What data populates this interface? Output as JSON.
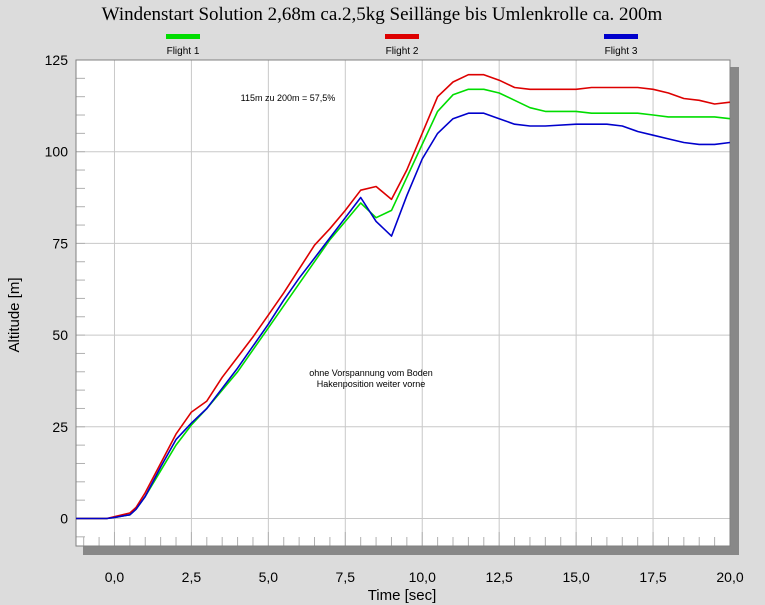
{
  "chart_data": {
    "type": "line",
    "title": "Windenstart Solution 2,68m ca.2,5kg Seillänge bis Umlenkrolle ca. 200m",
    "xlabel": "Time [sec]",
    "ylabel": "Altitude [m]",
    "xlim": [
      -1.25,
      20.0
    ],
    "ylim": [
      -7.5,
      125
    ],
    "xticks": [
      "0,0",
      "2,5",
      "5,0",
      "7,5",
      "10,0",
      "12,5",
      "15,0",
      "17,5",
      "20,0"
    ],
    "yticks": [
      "0",
      "25",
      "50",
      "75",
      "100",
      "125"
    ],
    "grid": true,
    "legend_position": "top",
    "annotations": {
      "note1": "115m zu 200m = 57,5%",
      "note2_line1": "ohne Vorspannung vom Boden",
      "note2_line2": "Hakenposition weiter vorne"
    },
    "series": [
      {
        "name": "Flight 1",
        "color": "#00dd00",
        "points": [
          [
            -1.25,
            0
          ],
          [
            -0.25,
            0
          ],
          [
            0,
            0.3
          ],
          [
            0.5,
            1
          ],
          [
            0.7,
            2.5
          ],
          [
            1,
            6
          ],
          [
            1.5,
            13
          ],
          [
            2,
            20
          ],
          [
            2.5,
            25.5
          ],
          [
            3,
            30
          ],
          [
            3.5,
            35
          ],
          [
            4,
            40
          ],
          [
            4.5,
            46
          ],
          [
            5,
            52
          ],
          [
            5.5,
            58
          ],
          [
            6,
            64
          ],
          [
            6.5,
            70
          ],
          [
            7,
            76
          ],
          [
            7.5,
            81
          ],
          [
            8,
            86
          ],
          [
            8.5,
            82
          ],
          [
            9,
            84
          ],
          [
            9.5,
            93
          ],
          [
            10,
            102
          ],
          [
            10.5,
            111
          ],
          [
            11,
            115.5
          ],
          [
            11.5,
            117
          ],
          [
            12,
            117
          ],
          [
            12.5,
            116
          ],
          [
            13,
            114
          ],
          [
            13.5,
            112
          ],
          [
            14,
            111
          ],
          [
            15,
            111
          ],
          [
            15.5,
            110.5
          ],
          [
            16,
            110.5
          ],
          [
            17,
            110.5
          ],
          [
            17.5,
            110
          ],
          [
            18,
            109.5
          ],
          [
            19,
            109.5
          ],
          [
            19.5,
            109.5
          ],
          [
            20,
            109
          ]
        ]
      },
      {
        "name": "Flight 2",
        "color": "#dd0000",
        "points": [
          [
            -1.25,
            0
          ],
          [
            -0.25,
            0
          ],
          [
            0,
            0.5
          ],
          [
            0.5,
            1.5
          ],
          [
            0.7,
            3
          ],
          [
            1,
            7
          ],
          [
            1.5,
            15
          ],
          [
            2,
            23
          ],
          [
            2.5,
            29
          ],
          [
            3,
            32
          ],
          [
            3.5,
            38.5
          ],
          [
            4,
            44
          ],
          [
            4.5,
            49.5
          ],
          [
            5,
            55.5
          ],
          [
            5.5,
            61.5
          ],
          [
            6,
            68
          ],
          [
            6.5,
            74.5
          ],
          [
            7,
            79
          ],
          [
            7.5,
            84
          ],
          [
            8,
            89.5
          ],
          [
            8.5,
            90.5
          ],
          [
            9,
            87
          ],
          [
            9.5,
            95
          ],
          [
            10,
            105
          ],
          [
            10.5,
            115
          ],
          [
            11,
            119
          ],
          [
            11.5,
            121
          ],
          [
            12,
            121
          ],
          [
            12.5,
            119.5
          ],
          [
            13,
            117.5
          ],
          [
            13.5,
            117
          ],
          [
            14,
            117
          ],
          [
            15,
            117
          ],
          [
            15.5,
            117.5
          ],
          [
            16,
            117.5
          ],
          [
            17,
            117.5
          ],
          [
            17.5,
            117
          ],
          [
            18,
            116
          ],
          [
            18.5,
            114.5
          ],
          [
            19,
            114
          ],
          [
            19.5,
            113
          ],
          [
            20,
            113.5
          ]
        ]
      },
      {
        "name": "Flight 3",
        "color": "#0000cc",
        "points": [
          [
            -1.25,
            0
          ],
          [
            -0.25,
            0
          ],
          [
            0,
            0.3
          ],
          [
            0.5,
            1
          ],
          [
            0.7,
            2.5
          ],
          [
            1,
            6
          ],
          [
            1.5,
            14
          ],
          [
            2,
            21.5
          ],
          [
            2.5,
            26
          ],
          [
            3,
            30
          ],
          [
            3.5,
            35.5
          ],
          [
            4,
            41
          ],
          [
            4.5,
            47
          ],
          [
            5,
            53
          ],
          [
            5.5,
            59.5
          ],
          [
            6,
            65.5
          ],
          [
            6.5,
            71
          ],
          [
            7,
            76.5
          ],
          [
            7.5,
            82
          ],
          [
            8,
            87.5
          ],
          [
            8.5,
            81
          ],
          [
            9,
            77
          ],
          [
            9.5,
            88
          ],
          [
            10,
            98
          ],
          [
            10.5,
            105
          ],
          [
            11,
            109
          ],
          [
            11.5,
            110.5
          ],
          [
            12,
            110.5
          ],
          [
            12.5,
            109
          ],
          [
            13,
            107.5
          ],
          [
            13.5,
            107
          ],
          [
            14,
            107
          ],
          [
            15,
            107.5
          ],
          [
            16,
            107.5
          ],
          [
            16.5,
            107
          ],
          [
            17,
            105.5
          ],
          [
            17.5,
            104.5
          ],
          [
            18,
            103.5
          ],
          [
            18.5,
            102.5
          ],
          [
            19,
            102
          ],
          [
            19.5,
            102
          ],
          [
            20,
            102.5
          ]
        ]
      }
    ]
  }
}
